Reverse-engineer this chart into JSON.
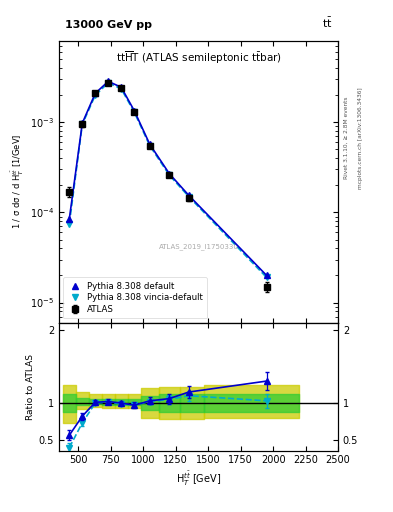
{
  "top_left_label": "13000 GeV pp",
  "top_right_label": "tt",
  "right_label_top": "Rivet 3.1.10, ≥ 2.8M events",
  "right_label_bot": "mcplots.cern.ch [arXiv:1306.3436]",
  "watermark": "ATLAS_2019_I1750330",
  "ylabel_main": "1 / σ dσ / d H$_T^{t\\bar{t}}$ [1/GeV]",
  "ylabel_ratio": "Ratio to ATLAS",
  "xlabel": "H$_T^{t\\bar{t}}$ [GeV]",
  "xlim": [
    350,
    2500
  ],
  "ylim_main": [
    6e-06,
    0.008
  ],
  "ylim_ratio": [
    0.35,
    2.1
  ],
  "x_centers": [
    430,
    530,
    630,
    730,
    830,
    930,
    1050,
    1200,
    1350,
    1950
  ],
  "atlas_y": [
    0.00017,
    0.00095,
    0.0021,
    0.0027,
    0.0024,
    0.0013,
    0.00055,
    0.00026,
    0.000145,
    1.5e-05
  ],
  "atlas_yerr": [
    2e-05,
    6e-05,
    0.0001,
    0.00012,
    0.00012,
    7e-05,
    3e-05,
    1.5e-05,
    1e-05,
    2e-06
  ],
  "pythia_default_y": [
    8.5e-05,
    0.00098,
    0.0021,
    0.00285,
    0.00245,
    0.00135,
    0.00057,
    0.00027,
    0.000155,
    2e-05
  ],
  "pythia_vincia_y": [
    7.5e-05,
    0.00095,
    0.002,
    0.00275,
    0.00235,
    0.0013,
    0.00055,
    0.00026,
    0.00015,
    1.9e-05
  ],
  "ratio_default_y": [
    0.56,
    0.82,
    1.01,
    1.02,
    1.0,
    0.97,
    1.03,
    1.06,
    1.15,
    1.3
  ],
  "ratio_default_x": [
    430,
    530,
    630,
    730,
    830,
    930,
    1050,
    1200,
    1350,
    1950
  ],
  "ratio_default_yerr": [
    0.07,
    0.05,
    0.03,
    0.03,
    0.03,
    0.04,
    0.05,
    0.07,
    0.08,
    0.12
  ],
  "ratio_vincia_y": [
    0.39,
    0.73,
    1.0,
    1.01,
    0.99,
    0.97,
    1.02,
    1.05,
    1.1,
    1.03
  ],
  "ratio_vincia_x": [
    430,
    530,
    630,
    730,
    830,
    930,
    1050,
    1200,
    1350,
    1950
  ],
  "ratio_vincia_yerr": [
    0.06,
    0.05,
    0.03,
    0.03,
    0.03,
    0.03,
    0.04,
    0.06,
    0.07,
    0.1
  ],
  "band_x_edges": [
    380,
    480,
    580,
    680,
    780,
    880,
    980,
    1120,
    1280,
    1470,
    2200
  ],
  "band_green_lo": [
    0.88,
    0.97,
    0.98,
    0.97,
    0.97,
    0.97,
    0.9,
    0.88,
    0.88,
    0.88
  ],
  "band_green_hi": [
    1.12,
    1.07,
    1.06,
    1.05,
    1.05,
    1.05,
    1.1,
    1.12,
    1.12,
    1.12
  ],
  "band_yellow_lo": [
    0.72,
    0.92,
    0.94,
    0.93,
    0.93,
    0.93,
    0.8,
    0.78,
    0.78,
    0.8
  ],
  "band_yellow_hi": [
    1.25,
    1.15,
    1.13,
    1.12,
    1.12,
    1.12,
    1.2,
    1.22,
    1.22,
    1.25
  ],
  "color_atlas": "#000000",
  "color_default": "#0000cc",
  "color_vincia": "#00aacc",
  "color_green": "#33cc33",
  "color_yellow": "#cccc00",
  "legend_labels": [
    "ATLAS",
    "Pythia 8.308 default",
    "Pythia 8.308 vincia-default"
  ]
}
